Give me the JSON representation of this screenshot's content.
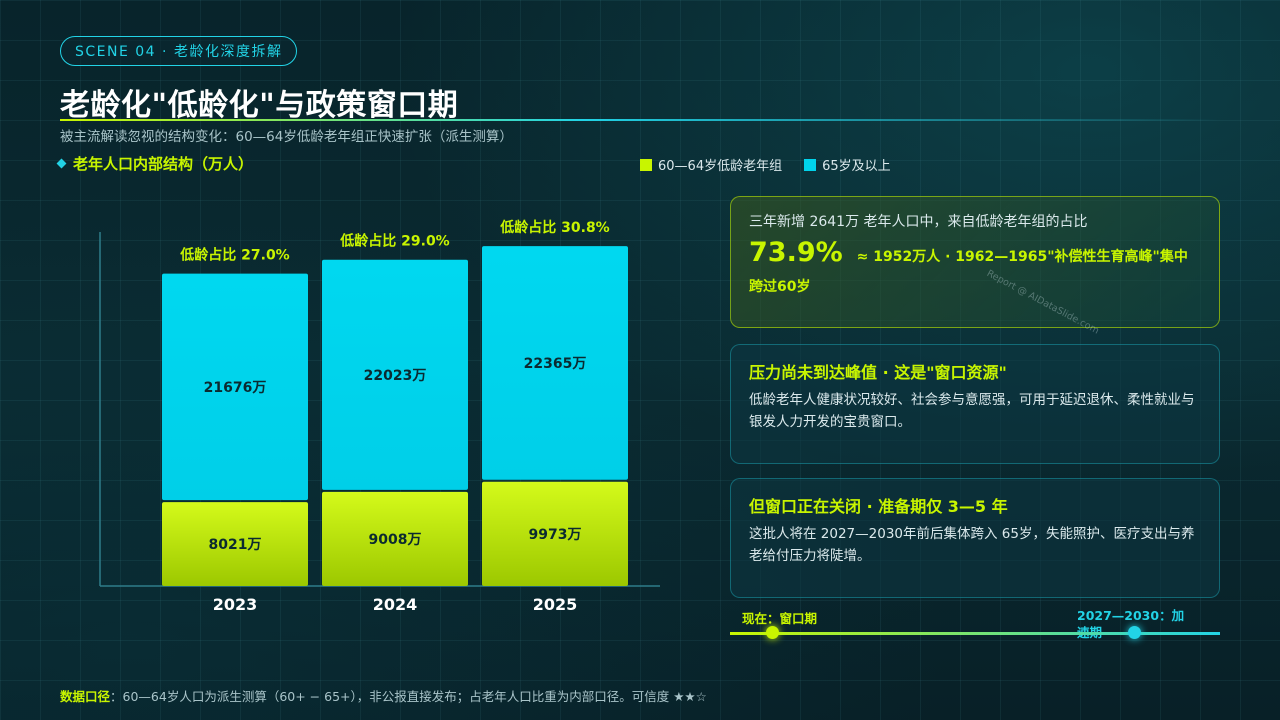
{
  "scene_tag": "SCENE 04 · 老龄化深度拆解",
  "title": "老龄化\"低龄化\"与政策窗口期",
  "subtitle": "被主流解读忽视的结构变化：60—64岁低龄老年组正快速扩张（派生测算）",
  "chart_label": "老年人口内部结构（万人）",
  "legend": [
    {
      "label": "60—64岁低龄老年组",
      "color": "#c8f500"
    },
    {
      "label": "65岁及以上",
      "color": "#00d4ec"
    }
  ],
  "colors": {
    "accent_green": "#c8f500",
    "accent_cyan": "#22d3e6"
  },
  "chart_data": {
    "type": "bar",
    "stacked": true,
    "categories": [
      "2023",
      "2024",
      "2025"
    ],
    "series": [
      {
        "name": "60—64岁低龄老年组",
        "values": [
          8021,
          9008,
          9973
        ],
        "labels": [
          "8021万",
          "9008万",
          "9973万"
        ]
      },
      {
        "name": "65岁及以上",
        "values": [
          21676,
          22023,
          22365
        ],
        "labels": [
          "21676万",
          "22023万",
          "22365万"
        ]
      }
    ],
    "annotations": [
      "低龄占比 27.0%",
      "低龄占比 29.0%",
      "低龄占比 30.8%"
    ],
    "ylim": [
      0,
      35000
    ],
    "grid": false,
    "legend_position": "top-right"
  },
  "cards": {
    "card1": {
      "top": "三年新增 2641万 老年人口中，来自低龄老年组的占比",
      "big": "73.9%",
      "rest": "≈ 1952万人 · 1962—1965\"补偿性生育高峰\"集中",
      "rest2": "跨过60岁"
    },
    "card2": {
      "heading": "压力尚未到达峰值 · 这是\"窗口资源\"",
      "body": "低龄老年人健康状况较好、社会参与意愿强，可用于延迟退休、柔性就业与银发人力开发的宝贵窗口。"
    },
    "card3": {
      "heading": "但窗口正在关闭 · 准备期仅 3—5 年",
      "body": "这批人将在 2027—2030年前后集体跨入 65岁，失能照护、医疗支出与养老给付压力将陡增。"
    }
  },
  "watermark": "Report @ AIDataSlide.com",
  "timeline": {
    "now": "现在：窗口期",
    "future": "2027—2030：加速期"
  },
  "footer": {
    "label": "数据口径",
    "text": "：60—64岁人口为派生测算（60+ − 65+），非公报直接发布；占老年人口比重为内部口径。可信度 ★★☆"
  }
}
